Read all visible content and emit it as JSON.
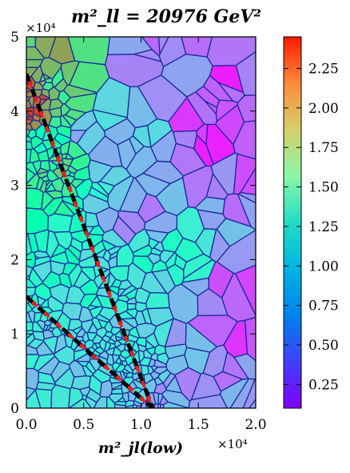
{
  "chart_data": {
    "type": "heatmap",
    "subtype": "voronoi",
    "title": "m²_ll = 20976 GeV²",
    "xlabel": "m²_jl(low)",
    "ylabel": "",
    "x_multiplier": "×10⁴",
    "y_multiplier": "×10⁴",
    "xlim": [
      0,
      20000
    ],
    "ylim": [
      0,
      50000
    ],
    "x_ticks": [
      0,
      5000,
      10000,
      15000,
      20000
    ],
    "x_tick_labels": [
      "0.0",
      "0.5",
      "1.0",
      "1.5",
      "2.0"
    ],
    "y_ticks": [
      0,
      10000,
      20000,
      30000,
      40000,
      50000
    ],
    "y_tick_labels": [
      "0",
      "1",
      "2",
      "3",
      "4",
      "5"
    ],
    "colorbar": {
      "colormap": "rainbow",
      "range": [
        0.1,
        2.45
      ],
      "ticks": [
        0.25,
        0.5,
        0.75,
        1.0,
        1.25,
        1.5,
        1.75,
        2.0,
        2.25
      ],
      "tick_labels": [
        "0.25",
        "0.50",
        "0.75",
        "1.00",
        "1.25",
        "1.50",
        "1.75",
        "2.00",
        "2.25"
      ]
    },
    "lines": [
      {
        "style": "black-red-dashed",
        "points": [
          [
            0,
            45000
          ],
          [
            11000,
            0
          ]
        ]
      },
      {
        "style": "black-red-dashed",
        "points": [
          [
            0,
            15000
          ],
          [
            11000,
            0
          ]
        ]
      }
    ],
    "cell_value_hotspots": [
      {
        "x": 700,
        "y": 42000,
        "value": 2.1
      },
      {
        "x": 300,
        "y": 40000,
        "value": 2.2
      },
      {
        "x": 2500,
        "y": 43000,
        "value": 1.7
      },
      {
        "x": 2500,
        "y": 33000,
        "value": 1.6
      },
      {
        "x": 1500,
        "y": 36000,
        "value": 1.2
      },
      {
        "x": 5000,
        "y": 20000,
        "value": 1.05
      },
      {
        "x": 12000,
        "y": 20000,
        "value": 1.0
      },
      {
        "x": 8000,
        "y": 10000,
        "value": 0.95
      },
      {
        "x": 6000,
        "y": 36000,
        "value": 0.65
      },
      {
        "x": 10000,
        "y": 26000,
        "value": 0.55
      },
      {
        "x": 18500,
        "y": 38000,
        "value": 0.3
      },
      {
        "x": 19000,
        "y": 13000,
        "value": 0.25
      },
      {
        "x": 14000,
        "y": 48000,
        "value": 0.45
      },
      {
        "x": 16000,
        "y": 4000,
        "value": 0.6
      },
      {
        "x": 4000,
        "y": 6000,
        "value": 0.85
      }
    ]
  }
}
